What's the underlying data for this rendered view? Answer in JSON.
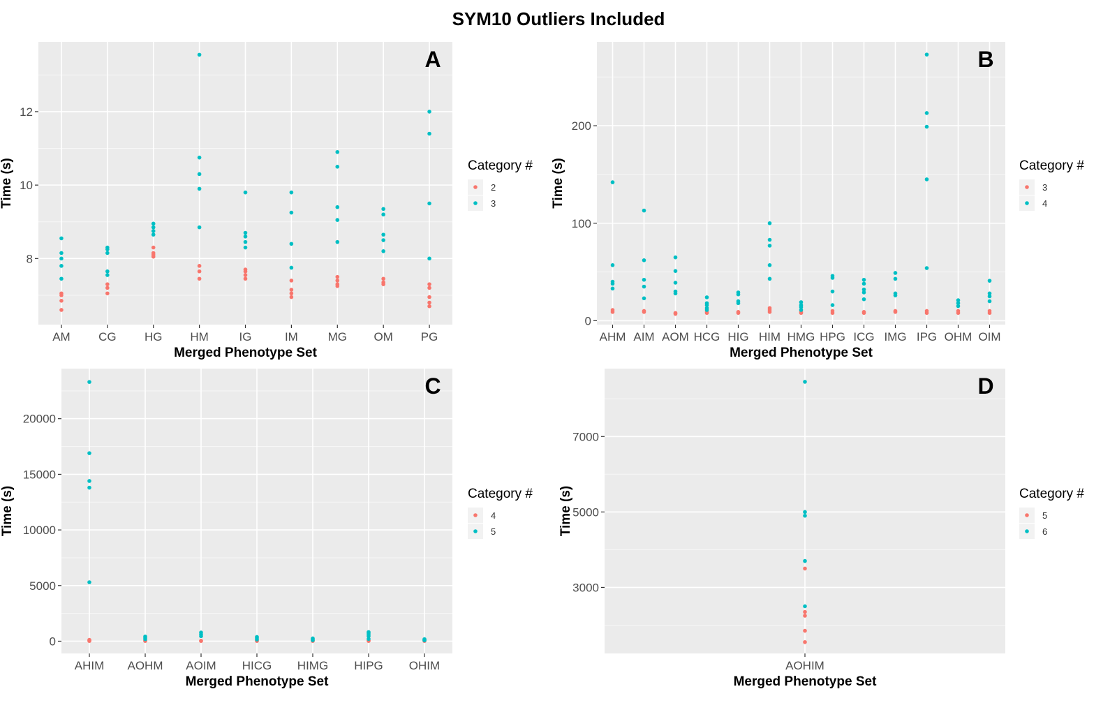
{
  "figure": {
    "title": "SYM10 Outliers Included"
  },
  "colors": {
    "cat_low": "#F8766D",
    "cat_high": "#00BFC4",
    "panel_bg": "#EBEBEB",
    "grid_major": "#FFFFFF"
  },
  "chart_data": [
    {
      "panel": "A",
      "type": "scatter",
      "xlabel": "Merged Phenotype Set",
      "ylabel": "Time (s)",
      "categories": [
        "AM",
        "CG",
        "HG",
        "HM",
        "IG",
        "IM",
        "MG",
        "OM",
        "PG"
      ],
      "yticks": [
        8,
        10,
        12
      ],
      "ylim": [
        6.2,
        13.9
      ],
      "legend": {
        "title": "Category #",
        "labels": [
          "2",
          "3"
        ]
      },
      "series": [
        {
          "name": "2",
          "points": [
            [
              0,
              6.6
            ],
            [
              0,
              6.85
            ],
            [
              0,
              7.0
            ],
            [
              0,
              7.05
            ],
            [
              1,
              7.05
            ],
            [
              1,
              7.2
            ],
            [
              1,
              7.3
            ],
            [
              2,
              8.05
            ],
            [
              2,
              8.1
            ],
            [
              2,
              8.15
            ],
            [
              2,
              8.3
            ],
            [
              3,
              7.45
            ],
            [
              3,
              7.65
            ],
            [
              3,
              7.8
            ],
            [
              4,
              7.45
            ],
            [
              4,
              7.55
            ],
            [
              4,
              7.65
            ],
            [
              4,
              7.7
            ],
            [
              5,
              6.95
            ],
            [
              5,
              7.05
            ],
            [
              5,
              7.15
            ],
            [
              5,
              7.4
            ],
            [
              6,
              7.25
            ],
            [
              6,
              7.3
            ],
            [
              6,
              7.4
            ],
            [
              6,
              7.5
            ],
            [
              7,
              7.3
            ],
            [
              7,
              7.35
            ],
            [
              7,
              7.45
            ],
            [
              8,
              6.7
            ],
            [
              8,
              6.8
            ],
            [
              8,
              6.95
            ],
            [
              8,
              7.2
            ],
            [
              8,
              7.3
            ]
          ]
        },
        {
          "name": "3",
          "points": [
            [
              0,
              7.45
            ],
            [
              0,
              7.8
            ],
            [
              0,
              8.0
            ],
            [
              0,
              8.15
            ],
            [
              0,
              8.55
            ],
            [
              1,
              7.55
            ],
            [
              1,
              7.65
            ],
            [
              1,
              8.15
            ],
            [
              1,
              8.25
            ],
            [
              1,
              8.3
            ],
            [
              2,
              8.65
            ],
            [
              2,
              8.75
            ],
            [
              2,
              8.85
            ],
            [
              2,
              8.95
            ],
            [
              3,
              8.85
            ],
            [
              3,
              9.9
            ],
            [
              3,
              10.3
            ],
            [
              3,
              10.75
            ],
            [
              3,
              13.55
            ],
            [
              4,
              8.3
            ],
            [
              4,
              8.45
            ],
            [
              4,
              8.6
            ],
            [
              4,
              8.7
            ],
            [
              4,
              9.8
            ],
            [
              5,
              7.75
            ],
            [
              5,
              8.4
            ],
            [
              5,
              9.25
            ],
            [
              5,
              9.8
            ],
            [
              6,
              8.45
            ],
            [
              6,
              9.05
            ],
            [
              6,
              9.4
            ],
            [
              6,
              10.5
            ],
            [
              6,
              10.9
            ],
            [
              7,
              8.2
            ],
            [
              7,
              8.5
            ],
            [
              7,
              8.65
            ],
            [
              7,
              9.2
            ],
            [
              7,
              9.35
            ],
            [
              8,
              8.0
            ],
            [
              8,
              9.5
            ],
            [
              8,
              11.4
            ],
            [
              8,
              12.0
            ]
          ]
        }
      ]
    },
    {
      "panel": "B",
      "type": "scatter",
      "xlabel": "Merged Phenotype Set",
      "ylabel": "Time (s)",
      "categories": [
        "AHM",
        "AIM",
        "AOM",
        "HCG",
        "HIG",
        "HIM",
        "HMG",
        "HPG",
        "ICG",
        "IMG",
        "IPG",
        "OHM",
        "OIM"
      ],
      "yticks": [
        0,
        100,
        200
      ],
      "ylim": [
        -4,
        286
      ],
      "legend": {
        "title": "Category #",
        "labels": [
          "3",
          "4"
        ]
      },
      "series": [
        {
          "name": "3",
          "points": [
            [
              0,
              9
            ],
            [
              0,
              11
            ],
            [
              1,
              9
            ],
            [
              1,
              10
            ],
            [
              2,
              7
            ],
            [
              2,
              8
            ],
            [
              3,
              8
            ],
            [
              3,
              9
            ],
            [
              4,
              8
            ],
            [
              4,
              9
            ],
            [
              5,
              9
            ],
            [
              5,
              11
            ],
            [
              5,
              13
            ],
            [
              6,
              8
            ],
            [
              6,
              9
            ],
            [
              7,
              8
            ],
            [
              7,
              10
            ],
            [
              8,
              8
            ],
            [
              8,
              9
            ],
            [
              9,
              9
            ],
            [
              9,
              10
            ],
            [
              10,
              8
            ],
            [
              10,
              10
            ],
            [
              11,
              8
            ],
            [
              11,
              10
            ],
            [
              12,
              8
            ],
            [
              12,
              10
            ]
          ]
        },
        {
          "name": "4",
          "points": [
            [
              0,
              33
            ],
            [
              0,
              38
            ],
            [
              0,
              40
            ],
            [
              0,
              57
            ],
            [
              0,
              142
            ],
            [
              1,
              23
            ],
            [
              1,
              35
            ],
            [
              1,
              42
            ],
            [
              1,
              62
            ],
            [
              1,
              113
            ],
            [
              2,
              28
            ],
            [
              2,
              30
            ],
            [
              2,
              39
            ],
            [
              2,
              51
            ],
            [
              2,
              65
            ],
            [
              3,
              11
            ],
            [
              3,
              13
            ],
            [
              3,
              16
            ],
            [
              3,
              18
            ],
            [
              3,
              24
            ],
            [
              4,
              18
            ],
            [
              4,
              20
            ],
            [
              4,
              27
            ],
            [
              4,
              29
            ],
            [
              5,
              43
            ],
            [
              5,
              57
            ],
            [
              5,
              77
            ],
            [
              5,
              83
            ],
            [
              5,
              100
            ],
            [
              6,
              11
            ],
            [
              6,
              14
            ],
            [
              6,
              16
            ],
            [
              6,
              19
            ],
            [
              7,
              16
            ],
            [
              7,
              30
            ],
            [
              7,
              44
            ],
            [
              7,
              46
            ],
            [
              8,
              22
            ],
            [
              8,
              29
            ],
            [
              8,
              32
            ],
            [
              8,
              38
            ],
            [
              8,
              42
            ],
            [
              9,
              26
            ],
            [
              9,
              28
            ],
            [
              9,
              43
            ],
            [
              9,
              49
            ],
            [
              10,
              54
            ],
            [
              10,
              145
            ],
            [
              10,
              199
            ],
            [
              10,
              213
            ],
            [
              10,
              273
            ],
            [
              11,
              15
            ],
            [
              11,
              18
            ],
            [
              11,
              21
            ],
            [
              12,
              20
            ],
            [
              12,
              25
            ],
            [
              12,
              28
            ],
            [
              12,
              41
            ]
          ]
        }
      ]
    },
    {
      "panel": "C",
      "type": "scatter",
      "xlabel": "Merged Phenotype Set",
      "ylabel": "Time (s)",
      "categories": [
        "AHIM",
        "AOHM",
        "AOIM",
        "HICG",
        "HIMG",
        "HIPG",
        "OHIM"
      ],
      "yticks": [
        0,
        5000,
        10000,
        15000,
        20000
      ],
      "ylim": [
        -1100,
        24500
      ],
      "legend": {
        "title": "Category #",
        "labels": [
          "4",
          "5"
        ]
      },
      "series": [
        {
          "name": "4",
          "points": [
            [
              0,
              20
            ],
            [
              0,
              60
            ],
            [
              0,
              120
            ],
            [
              1,
              20
            ],
            [
              1,
              40
            ],
            [
              2,
              20
            ],
            [
              2,
              40
            ],
            [
              3,
              20
            ],
            [
              3,
              40
            ],
            [
              4,
              20
            ],
            [
              4,
              40
            ],
            [
              5,
              20
            ],
            [
              5,
              50
            ],
            [
              6,
              20
            ],
            [
              6,
              40
            ]
          ]
        },
        {
          "name": "5",
          "points": [
            [
              0,
              5300
            ],
            [
              0,
              13800
            ],
            [
              0,
              14400
            ],
            [
              0,
              16900
            ],
            [
              0,
              23300
            ],
            [
              1,
              180
            ],
            [
              1,
              300
            ],
            [
              1,
              420
            ],
            [
              2,
              450
            ],
            [
              2,
              620
            ],
            [
              2,
              780
            ],
            [
              3,
              150
            ],
            [
              3,
              280
            ],
            [
              3,
              380
            ],
            [
              4,
              90
            ],
            [
              4,
              180
            ],
            [
              4,
              250
            ],
            [
              5,
              200
            ],
            [
              5,
              450
            ],
            [
              5,
              580
            ],
            [
              5,
              720
            ],
            [
              5,
              820
            ],
            [
              6,
              80
            ],
            [
              6,
              140
            ],
            [
              6,
              180
            ]
          ]
        }
      ]
    },
    {
      "panel": "D",
      "type": "scatter",
      "xlabel": "Merged Phenotype Set",
      "ylabel": "Time (s)",
      "categories": [
        "AOHIM"
      ],
      "yticks": [
        3000,
        5000,
        7000
      ],
      "ylim": [
        1250,
        8800
      ],
      "legend": {
        "title": "Category #",
        "labels": [
          "5",
          "6"
        ]
      },
      "series": [
        {
          "name": "5",
          "points": [
            [
              0,
              1550
            ],
            [
              0,
              1850
            ],
            [
              0,
              2250
            ],
            [
              0,
              2350
            ],
            [
              0,
              3500
            ]
          ]
        },
        {
          "name": "6",
          "points": [
            [
              0,
              2500
            ],
            [
              0,
              3700
            ],
            [
              0,
              4900
            ],
            [
              0,
              5000
            ],
            [
              0,
              8450
            ]
          ]
        }
      ]
    }
  ]
}
